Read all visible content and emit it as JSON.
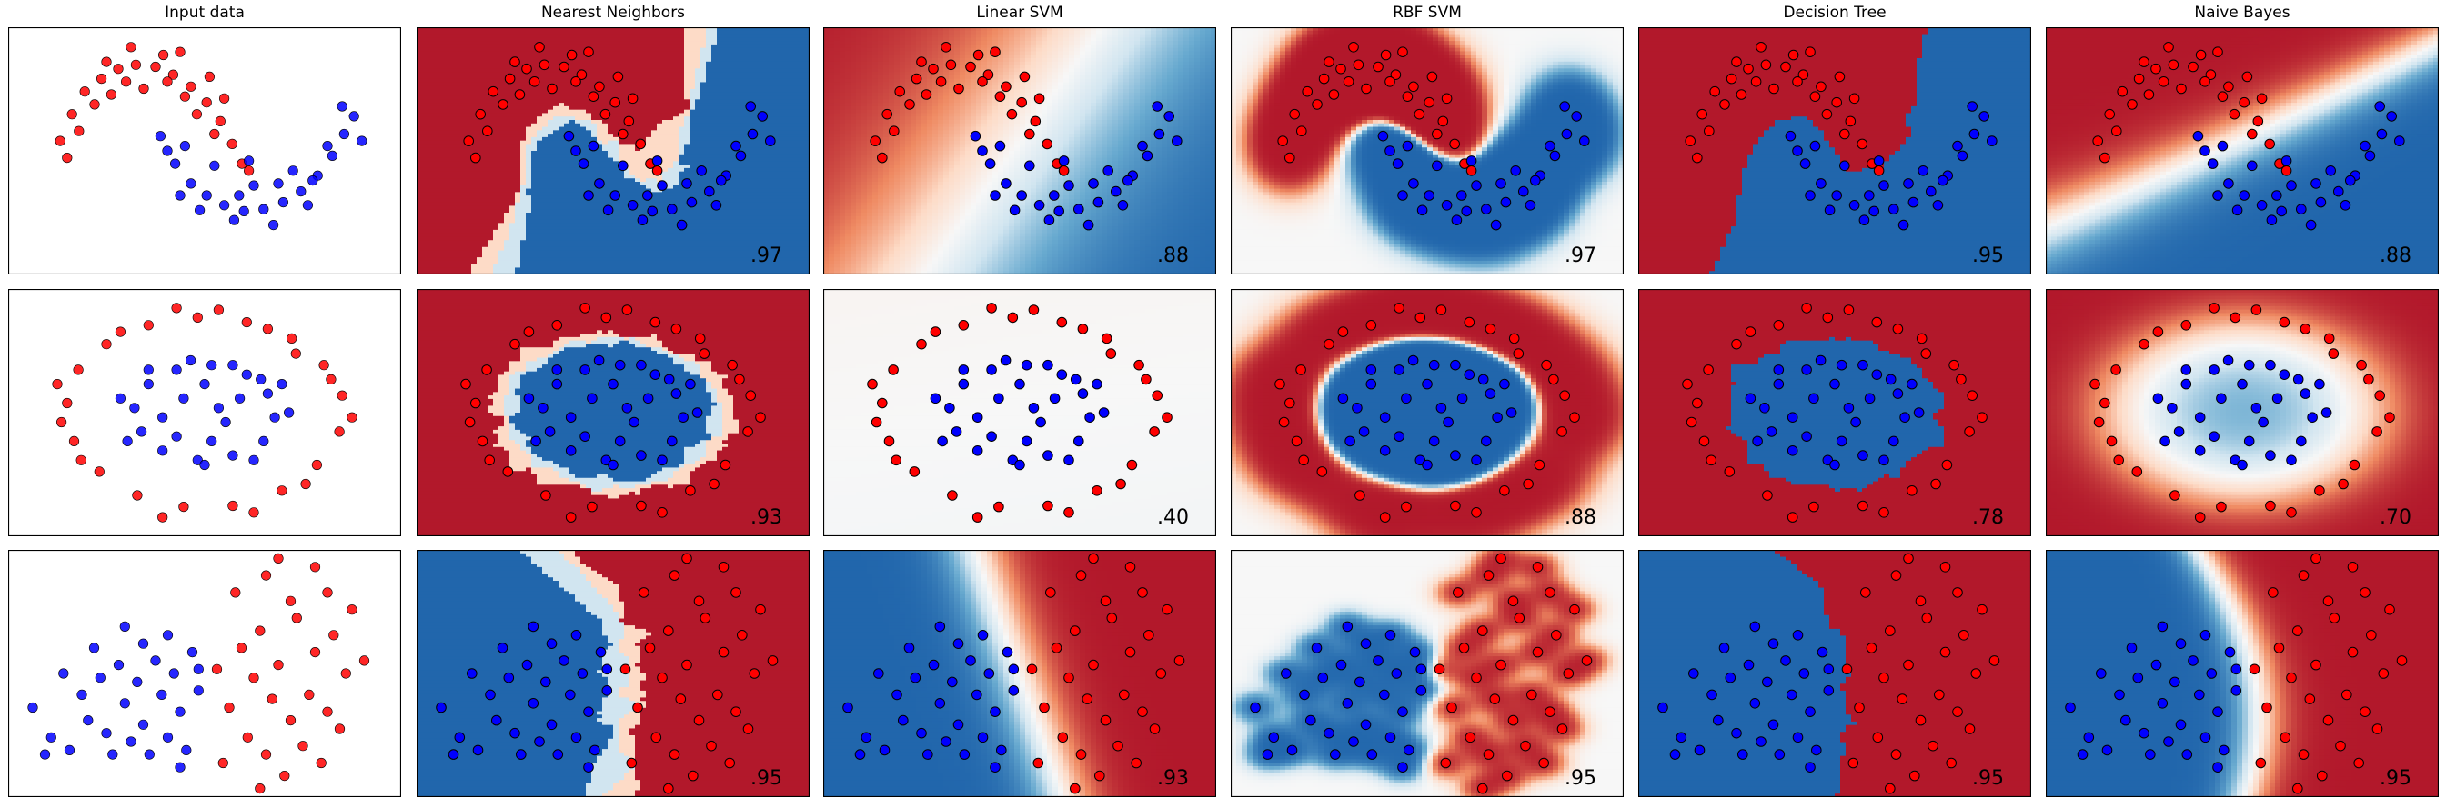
{
  "figure": {
    "columns": [
      "Input data",
      "Nearest Neighbors",
      "Linear SVM",
      "RBF SVM",
      "Decision Tree",
      "Naive Bayes"
    ]
  },
  "colors": {
    "class0_point": "#ff0000",
    "class1_point": "#0000ff",
    "red_region": "#b2182b",
    "blue_region": "#2166ac",
    "cmap": [
      "#b2182b",
      "#ef8a62",
      "#fddbc7",
      "#f7f7f7",
      "#d1e5f0",
      "#67a9cf",
      "#2166ac"
    ]
  },
  "chart_data": [
    {
      "type": "scatter",
      "dataset": "moons",
      "scores": [
        "",
        ".97",
        ".88",
        ".97",
        ".95",
        ".88"
      ],
      "xlim": [
        -1.5,
        2.5
      ],
      "ylim": [
        -1.0,
        1.5
      ],
      "series": [
        {
          "label": 0,
          "points": [
            [
              -0.97,
              0.35
            ],
            [
              -0.85,
              0.62
            ],
            [
              -0.72,
              0.85
            ],
            [
              -0.55,
              0.98
            ],
            [
              -0.38,
              1.08
            ],
            [
              -0.2,
              1.12
            ],
            [
              0.0,
              1.1
            ],
            [
              0.18,
              1.02
            ],
            [
              0.36,
              0.9
            ],
            [
              0.52,
              0.74
            ],
            [
              0.66,
              0.55
            ],
            [
              0.78,
              0.32
            ],
            [
              0.88,
              0.12
            ],
            [
              -0.9,
              0.18
            ],
            [
              -0.62,
              0.72
            ],
            [
              -0.3,
              0.95
            ],
            [
              0.08,
              1.22
            ],
            [
              0.42,
              0.62
            ],
            [
              0.6,
              0.42
            ],
            [
              -0.45,
              0.82
            ],
            [
              0.25,
              1.25
            ],
            [
              -0.12,
              0.88
            ],
            [
              0.7,
              0.78
            ],
            [
              -0.78,
              0.45
            ],
            [
              0.95,
              0.05
            ],
            [
              0.3,
              0.8
            ],
            [
              -0.5,
              1.15
            ],
            [
              0.12,
              0.95
            ],
            [
              -0.25,
              1.3
            ],
            [
              0.55,
              1.0
            ]
          ]
        },
        {
          "label": 1,
          "points": [
            [
              0.05,
              0.4
            ],
            [
              0.2,
              0.12
            ],
            [
              0.36,
              -0.08
            ],
            [
              0.52,
              -0.2
            ],
            [
              0.7,
              -0.3
            ],
            [
              0.9,
              -0.36
            ],
            [
              1.1,
              -0.34
            ],
            [
              1.3,
              -0.27
            ],
            [
              1.48,
              -0.16
            ],
            [
              1.65,
              0.0
            ],
            [
              1.8,
              0.2
            ],
            [
              1.92,
              0.42
            ],
            [
              2.02,
              0.6
            ],
            [
              0.12,
              0.25
            ],
            [
              0.45,
              -0.35
            ],
            [
              0.8,
              -0.45
            ],
            [
              1.2,
              -0.5
            ],
            [
              1.55,
              -0.3
            ],
            [
              1.75,
              0.3
            ],
            [
              0.6,
              0.1
            ],
            [
              1.0,
              -0.1
            ],
            [
              1.4,
              0.05
            ],
            [
              0.3,
              0.3
            ],
            [
              2.1,
              0.35
            ],
            [
              0.85,
              -0.2
            ],
            [
              1.6,
              -0.05
            ],
            [
              0.95,
              0.15
            ],
            [
              1.25,
              -0.08
            ],
            [
              1.9,
              0.7
            ],
            [
              0.25,
              -0.2
            ]
          ]
        }
      ]
    },
    {
      "type": "scatter",
      "dataset": "circles",
      "scores": [
        "",
        ".93",
        ".40",
        ".88",
        ".78",
        ".70"
      ],
      "xlim": [
        -1.4,
        1.4
      ],
      "ylim": [
        -1.3,
        1.3
      ],
      "series": [
        {
          "label": 0,
          "points": [
            [
              -0.98,
              0.1
            ],
            [
              -0.9,
              0.45
            ],
            [
              -0.7,
              0.72
            ],
            [
              -0.4,
              0.92
            ],
            [
              -0.05,
              1.0
            ],
            [
              0.3,
              0.95
            ],
            [
              0.62,
              0.78
            ],
            [
              0.85,
              0.5
            ],
            [
              0.98,
              0.18
            ],
            [
              0.96,
              -0.2
            ],
            [
              0.8,
              -0.55
            ],
            [
              0.55,
              -0.82
            ],
            [
              0.2,
              -0.98
            ],
            [
              -0.15,
              -0.99
            ],
            [
              -0.48,
              -0.87
            ],
            [
              -0.75,
              -0.62
            ],
            [
              -0.93,
              -0.3
            ],
            [
              -1.05,
              0.3
            ],
            [
              0.1,
              1.08
            ],
            [
              0.72,
              -0.75
            ],
            [
              -0.6,
              0.85
            ],
            [
              1.05,
              -0.05
            ],
            [
              -0.3,
              -1.1
            ],
            [
              0.45,
              0.88
            ],
            [
              -0.88,
              -0.5
            ],
            [
              0.9,
              0.35
            ],
            [
              -0.2,
              1.1
            ],
            [
              0.35,
              -1.05
            ],
            [
              -1.02,
              -0.1
            ],
            [
              0.65,
              0.62
            ]
          ]
        },
        {
          "label": 1,
          "points": [
            [
              -0.5,
              0.05
            ],
            [
              -0.4,
              0.3
            ],
            [
              -0.2,
              0.45
            ],
            [
              0.05,
              0.5
            ],
            [
              0.3,
              0.4
            ],
            [
              0.45,
              0.2
            ],
            [
              0.5,
              -0.05
            ],
            [
              0.42,
              -0.3
            ],
            [
              0.2,
              -0.45
            ],
            [
              -0.05,
              -0.5
            ],
            [
              -0.3,
              -0.4
            ],
            [
              -0.45,
              -0.2
            ],
            [
              -0.15,
              0.15
            ],
            [
              0.15,
              -0.1
            ],
            [
              0.0,
              0.3
            ],
            [
              -0.3,
              -0.05
            ],
            [
              0.25,
              0.15
            ],
            [
              0.05,
              -0.3
            ],
            [
              -0.55,
              -0.3
            ],
            [
              0.55,
              0.3
            ],
            [
              -0.1,
              0.55
            ],
            [
              0.35,
              -0.5
            ],
            [
              -0.4,
              0.45
            ],
            [
              0.1,
              0.05
            ],
            [
              -0.2,
              -0.25
            ],
            [
              0.6,
              0.0
            ],
            [
              -0.6,
              0.15
            ],
            [
              0.2,
              0.5
            ],
            [
              0.0,
              -0.55
            ],
            [
              0.4,
              0.35
            ]
          ]
        }
      ]
    },
    {
      "type": "scatter",
      "dataset": "linearly_separable",
      "scores": [
        "",
        ".95",
        ".93",
        ".95",
        ".95",
        ".95"
      ],
      "xlim": [
        -3.2,
        3.2
      ],
      "ylim": [
        -2.6,
        3.2
      ],
      "series": [
        {
          "label": 0,
          "points": [
            [
              0.6,
              0.9
            ],
            [
              0.9,
              1.3
            ],
            [
              1.2,
              0.5
            ],
            [
              1.5,
              1.6
            ],
            [
              1.8,
              0.8
            ],
            [
              2.1,
              1.2
            ],
            [
              0.8,
              0.2
            ],
            [
              1.1,
              -0.3
            ],
            [
              1.4,
              -0.8
            ],
            [
              1.7,
              -0.2
            ],
            [
              2.0,
              -0.6
            ],
            [
              2.3,
              0.3
            ],
            [
              0.4,
              -0.5
            ],
            [
              0.7,
              -1.2
            ],
            [
              1.0,
              -1.6
            ],
            [
              1.3,
              -2.1
            ],
            [
              1.6,
              -1.4
            ],
            [
              1.9,
              -1.8
            ],
            [
              2.2,
              -1.0
            ],
            [
              0.5,
              2.2
            ],
            [
              1.0,
              2.6
            ],
            [
              1.4,
              2.0
            ],
            [
              1.8,
              2.8
            ],
            [
              2.4,
              1.8
            ],
            [
              0.2,
              0.4
            ],
            [
              2.6,
              0.6
            ],
            [
              0.3,
              -1.8
            ],
            [
              1.2,
              3.0
            ],
            [
              2.0,
              2.2
            ],
            [
              0.9,
              -2.4
            ]
          ]
        },
        {
          "label": 1,
          "points": [
            [
              -2.5,
              -1.2
            ],
            [
              -2.2,
              -1.5
            ],
            [
              -1.9,
              -0.8
            ],
            [
              -1.6,
              -1.1
            ],
            [
              -1.3,
              -0.4
            ],
            [
              -1.0,
              -0.9
            ],
            [
              -0.7,
              -0.2
            ],
            [
              -0.4,
              -0.6
            ],
            [
              -0.1,
              -0.1
            ],
            [
              -2.0,
              -0.2
            ],
            [
              -1.7,
              0.2
            ],
            [
              -1.4,
              0.5
            ],
            [
              -1.1,
              0.1
            ],
            [
              -0.8,
              0.6
            ],
            [
              -0.5,
              0.3
            ],
            [
              -0.2,
              0.8
            ],
            [
              -2.3,
              0.3
            ],
            [
              -1.5,
              -1.6
            ],
            [
              -1.2,
              -1.3
            ],
            [
              -0.9,
              -1.6
            ],
            [
              -0.6,
              -1.2
            ],
            [
              -0.3,
              -1.5
            ],
            [
              -2.8,
              -0.5
            ],
            [
              -1.8,
              0.9
            ],
            [
              -1.0,
              1.0
            ],
            [
              -0.6,
              1.2
            ],
            [
              -0.1,
              0.4
            ],
            [
              -2.6,
              -1.6
            ],
            [
              -1.3,
              1.4
            ],
            [
              -0.4,
              -1.9
            ]
          ]
        }
      ]
    }
  ]
}
